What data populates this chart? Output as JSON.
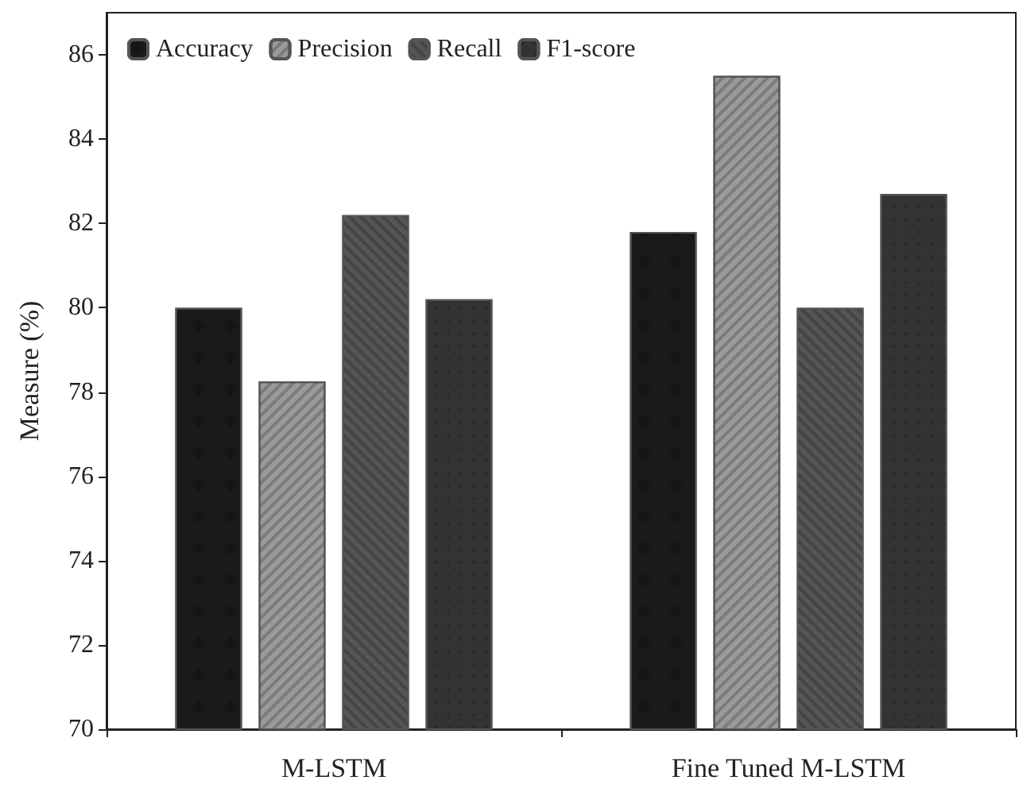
{
  "chart_data": {
    "type": "bar",
    "ylabel": "Measure (%)",
    "categories": [
      "M-LSTM",
      "Fine Tuned M-LSTM"
    ],
    "series": [
      {
        "name": "Accuracy",
        "color": "#1a1a1a",
        "values": [
          80,
          81.8
        ]
      },
      {
        "name": "Precision",
        "color": "#9a9a9a",
        "values": [
          78.25,
          85.5
        ]
      },
      {
        "name": "Recall",
        "color": "#555555",
        "values": [
          82.2,
          80
        ]
      },
      {
        "name": "F1-score",
        "color": "#333333",
        "values": [
          80.2,
          82.7
        ]
      }
    ],
    "ylim": [
      70,
      87
    ],
    "yticks": [
      70,
      72,
      74,
      76,
      78,
      80,
      82,
      84,
      86
    ],
    "grid": false,
    "legend": "top left"
  }
}
